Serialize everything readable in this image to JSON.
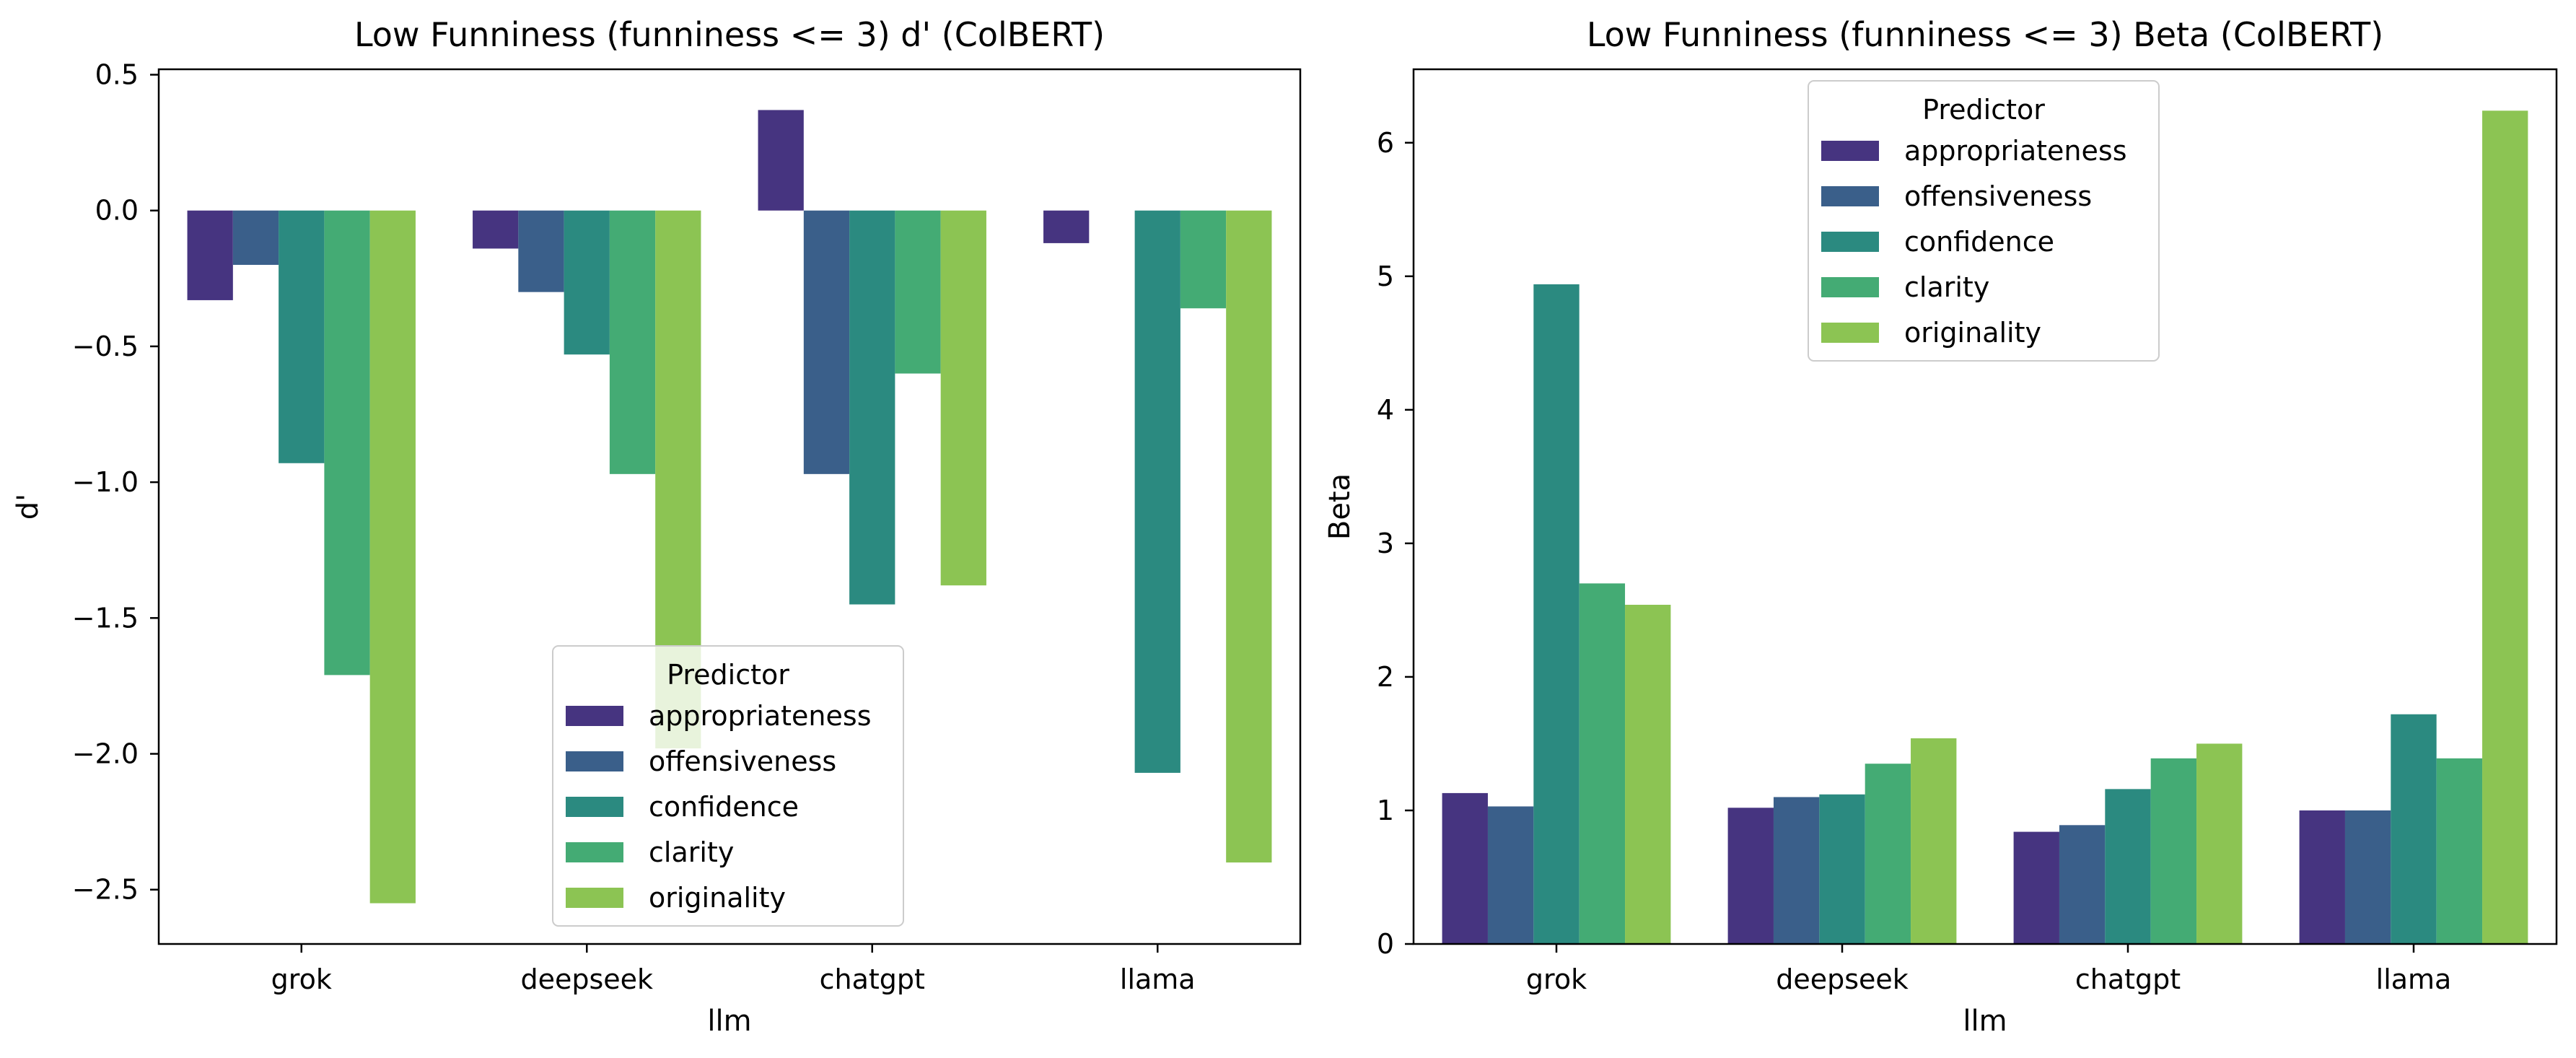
{
  "chart_data": [
    {
      "type": "bar",
      "title": "Low Funniness (funniness <= 3) d' (ColBERT)",
      "xlabel": "llm",
      "ylabel": "d'",
      "ylim": [
        -2.7,
        0.52
      ],
      "yticks": [
        0.5,
        0.0,
        -0.5,
        -1.0,
        -1.5,
        -2.0,
        -2.5
      ],
      "ytick_labels": [
        "0.5",
        "0.0",
        "−0.5",
        "−1.0",
        "−1.5",
        "−2.0",
        "−2.5"
      ],
      "categories": [
        "grok",
        "deepseek",
        "chatgpt",
        "llama"
      ],
      "series": [
        {
          "name": "appropriateness",
          "color": "#463480",
          "values": [
            -0.33,
            -0.14,
            0.37,
            -0.12
          ]
        },
        {
          "name": "offensiveness",
          "color": "#3a5f8a",
          "values": [
            -0.2,
            -0.3,
            -0.97,
            0.0
          ]
        },
        {
          "name": "confidence",
          "color": "#2b8a80",
          "values": [
            -0.93,
            -0.53,
            -1.45,
            -2.07
          ]
        },
        {
          "name": "clarity",
          "color": "#44ab74",
          "values": [
            -1.71,
            -0.97,
            -0.6,
            -0.36
          ]
        },
        {
          "name": "originality",
          "color": "#8cc453",
          "values": [
            -2.55,
            -1.98,
            -1.38,
            -2.4
          ]
        }
      ],
      "grid": false,
      "legend": {
        "title": "Predictor",
        "position": "lower-center"
      }
    },
    {
      "type": "bar",
      "title": "Low Funniness (funniness <= 3) Beta (ColBERT)",
      "xlabel": "llm",
      "ylabel": "Beta",
      "ylim": [
        0,
        6.55
      ],
      "yticks": [
        0,
        1,
        2,
        3,
        4,
        5,
        6
      ],
      "ytick_labels": [
        "0",
        "1",
        "2",
        "3",
        "4",
        "5",
        "6"
      ],
      "categories": [
        "grok",
        "deepseek",
        "chatgpt",
        "llama"
      ],
      "series": [
        {
          "name": "appropriateness",
          "color": "#463480",
          "values": [
            1.13,
            1.02,
            0.84,
            1.0
          ]
        },
        {
          "name": "offensiveness",
          "color": "#3a5f8a",
          "values": [
            1.03,
            1.1,
            0.89,
            1.0
          ]
        },
        {
          "name": "confidence",
          "color": "#2b8a80",
          "values": [
            4.94,
            1.12,
            1.16,
            1.72
          ]
        },
        {
          "name": "clarity",
          "color": "#44ab74",
          "values": [
            2.7,
            1.35,
            1.39,
            1.39
          ]
        },
        {
          "name": "originality",
          "color": "#8cc453",
          "values": [
            2.54,
            1.54,
            1.5,
            6.24
          ]
        }
      ],
      "grid": false,
      "legend": {
        "title": "Predictor",
        "position": "upper-center"
      }
    }
  ]
}
